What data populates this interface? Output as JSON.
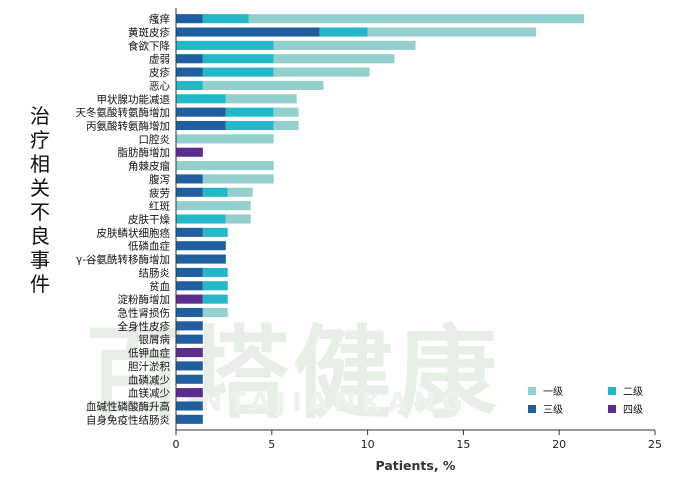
{
  "chart_data": {
    "type": "bar",
    "orientation": "horizontal",
    "stacked": true,
    "ylabel": "治疗相关不良事件",
    "xlabel": "Patients, %",
    "xlim": [
      0,
      25
    ],
    "xticks": [
      0,
      5,
      10,
      15,
      20,
      25
    ],
    "grid": false,
    "legend_position": "bottom-right",
    "categories": [
      "瘙痒",
      "黄斑皮疹",
      "食欲下降",
      "虚弱",
      "皮疹",
      "恶心",
      "甲状腺功能减退",
      "天冬氨酸转氨酶增加",
      "丙氨酸转氨酶增加",
      "口腔炎",
      "脂肪酶增加",
      "角棘皮瘤",
      "腹泻",
      "疲劳",
      "红斑",
      "皮肤干燥",
      "皮肤鳞状细胞癌",
      "低磷血症",
      "γ-谷氨酰转移酶增加",
      "结肠炎",
      "贫血",
      "淀粉酶增加",
      "急性肾损伤",
      "全身性皮疹",
      "银屑病",
      "低钾血症",
      "胆汁淤积",
      "血磷减少",
      "血镁减少",
      "血碱性磷酸酶升高",
      "自身免疫性结肠炎"
    ],
    "series": [
      {
        "name": "三级",
        "color": "#1f5fa0",
        "values": [
          1.4,
          7.5,
          0,
          1.4,
          1.4,
          0,
          0,
          2.6,
          2.6,
          0,
          0,
          0,
          1.4,
          1.4,
          0,
          0,
          1.4,
          2.6,
          2.6,
          1.4,
          1.4,
          0,
          1.4,
          1.4,
          1.4,
          0,
          1.4,
          1.4,
          0,
          1.4,
          1.4
        ]
      },
      {
        "name": "四级",
        "color": "#5b2d8e",
        "values": [
          0,
          0,
          0,
          0,
          0,
          0,
          0,
          0,
          0,
          0,
          1.4,
          0,
          0,
          0,
          0,
          0,
          0,
          0,
          0,
          0,
          0,
          1.4,
          0,
          0,
          0,
          1.4,
          0,
          0,
          1.4,
          0,
          0
        ]
      },
      {
        "name": "二级",
        "color": "#22b8c8",
        "values": [
          2.4,
          2.5,
          5.1,
          3.7,
          3.7,
          1.4,
          2.6,
          2.5,
          2.5,
          0,
          0,
          0,
          0,
          1.3,
          0,
          2.6,
          1.3,
          0,
          0,
          1.3,
          1.3,
          1.3,
          0,
          0,
          0,
          0,
          0,
          0,
          0,
          0,
          0
        ]
      },
      {
        "name": "一级",
        "color": "#93cfcc",
        "values": [
          17.5,
          8.8,
          7.4,
          6.3,
          5.0,
          6.3,
          3.7,
          1.3,
          1.3,
          5.1,
          0,
          5.1,
          3.7,
          1.3,
          3.9,
          1.3,
          0,
          0,
          0,
          0,
          0,
          0,
          1.3,
          0,
          0,
          0,
          0,
          0,
          0,
          0,
          0
        ]
      }
    ],
    "legend": [
      {
        "name": "一级",
        "color": "#93cfcc"
      },
      {
        "name": "二级",
        "color": "#22b8c8"
      },
      {
        "name": "三级",
        "color": "#1f5fa0"
      },
      {
        "name": "四级",
        "color": "#5b2d8e"
      }
    ]
  },
  "watermark": {
    "text": "百塔健康",
    "subtext": "INTAJIANKANG"
  }
}
